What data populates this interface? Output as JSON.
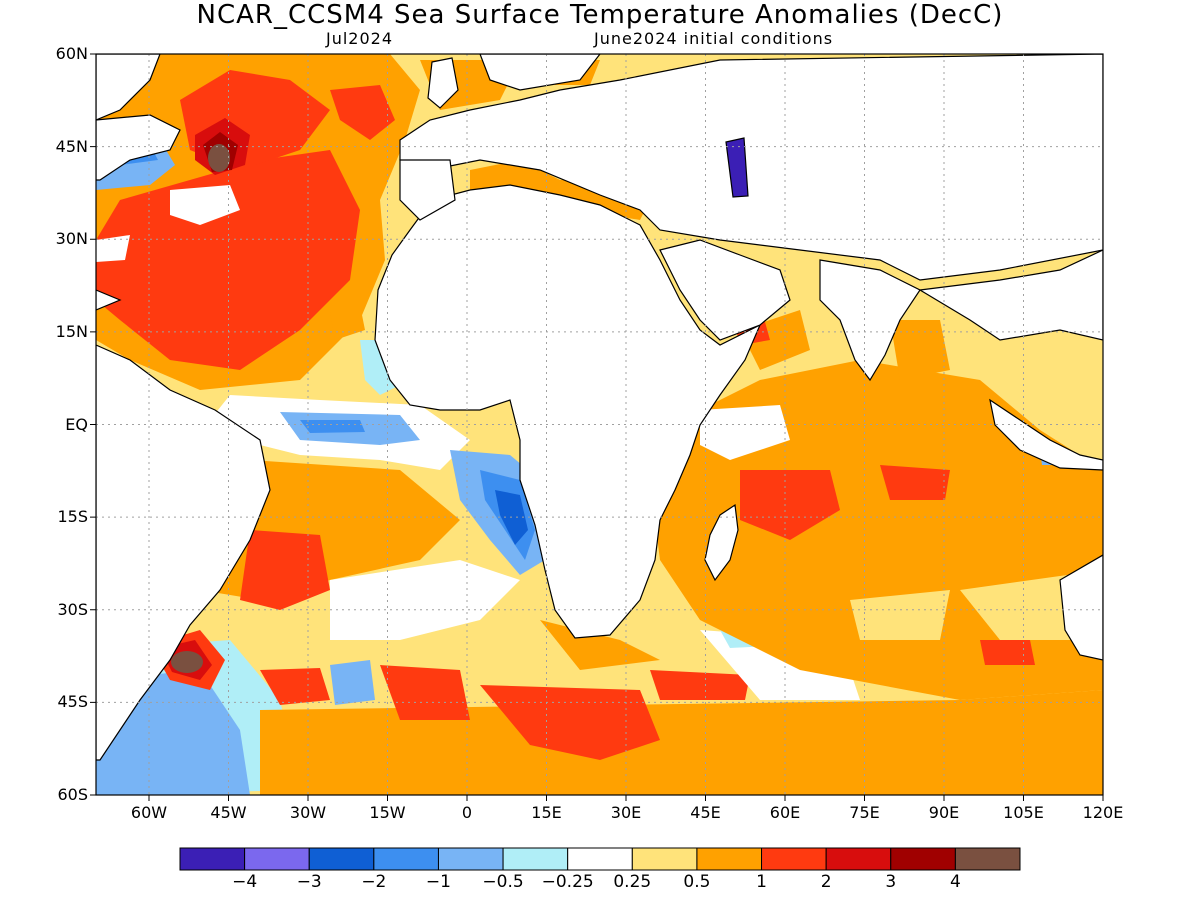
{
  "title": "NCAR_CCSM4 Sea Surface Temperature Anomalies (DecC)",
  "subtitle_left": "Jul2024",
  "subtitle_right": "June2024 initial conditions",
  "lat_labels": [
    "60N",
    "45N",
    "30N",
    "15N",
    "EQ",
    "15S",
    "30S",
    "45S",
    "60S"
  ],
  "lat_values": [
    60,
    45,
    30,
    15,
    0,
    -15,
    -30,
    -45,
    -60
  ],
  "lon_labels": [
    "60W",
    "45W",
    "30W",
    "15W",
    "0",
    "15E",
    "30E",
    "45E",
    "60E",
    "75E",
    "90E",
    "105E",
    "120E"
  ],
  "lon_values": [
    -60,
    -45,
    -30,
    -15,
    0,
    15,
    30,
    45,
    60,
    75,
    90,
    105,
    120
  ],
  "colorbar": {
    "colors": [
      "#3b1fb5",
      "#7b68ee",
      "#0f5fd4",
      "#3d8ff0",
      "#78b4f5",
      "#b0eef7",
      "#ffffff",
      "#ffe37a",
      "#ffa100",
      "#ff3a10",
      "#d80d0d",
      "#a00000",
      "#7a5040"
    ],
    "labels": [
      "−4",
      "−3",
      "−2",
      "−1",
      "−0.5",
      "−0.25",
      "0.25",
      "0.5",
      "1",
      "2",
      "3",
      "4"
    ]
  },
  "colors": {
    "land": "#ffffff",
    "coast": "#000000",
    "grid": "#a0a0a0"
  }
}
